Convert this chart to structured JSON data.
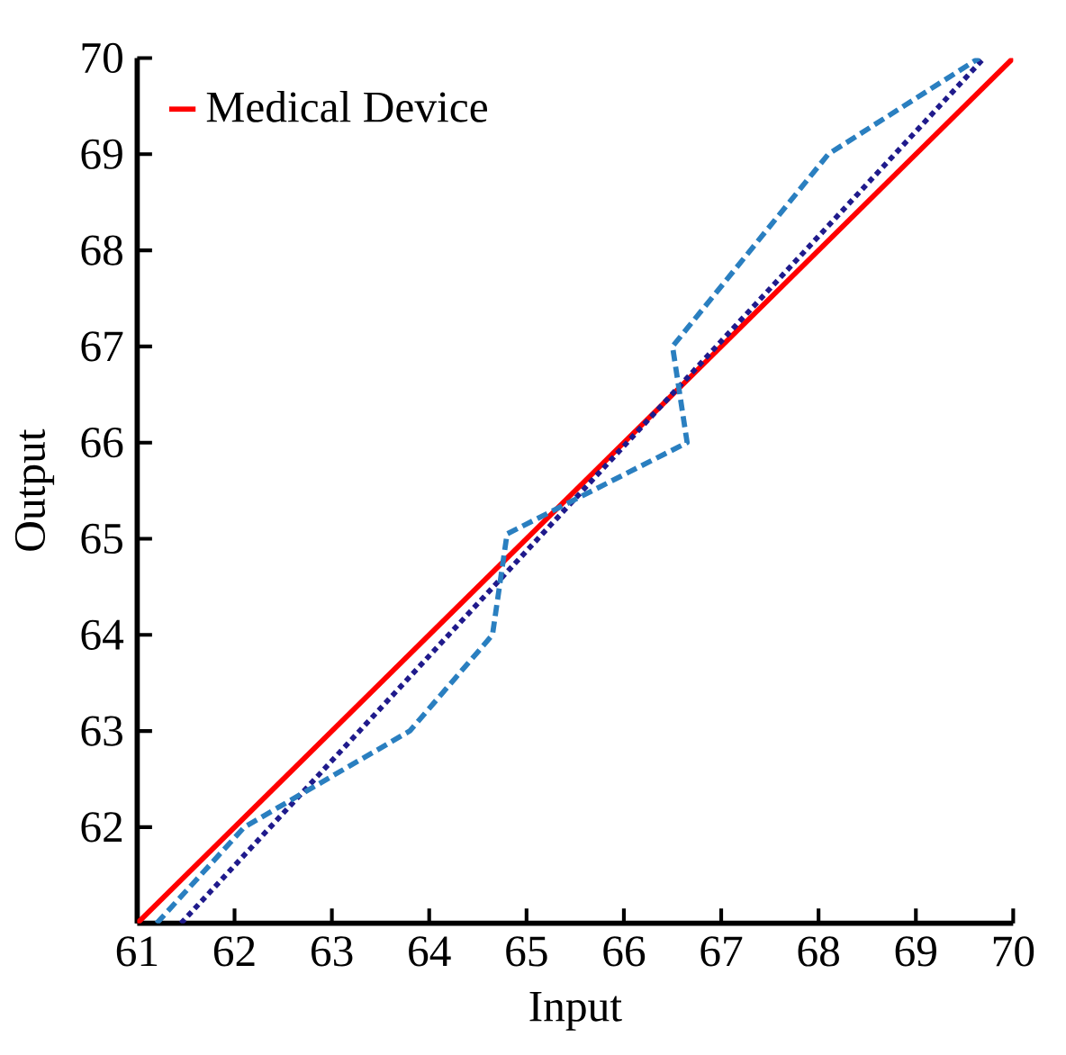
{
  "chart_data": {
    "type": "line",
    "xlabel": "Input",
    "ylabel": "Output",
    "xlim": [
      61,
      70
    ],
    "ylim": [
      61,
      70
    ],
    "xticks": [
      61,
      62,
      63,
      64,
      65,
      66,
      67,
      68,
      69,
      70
    ],
    "yticks": [
      62,
      63,
      64,
      65,
      66,
      67,
      68,
      69,
      70
    ],
    "legend": "top left",
    "grid": false,
    "marker": "none",
    "series": [
      {
        "name": "Medical Device",
        "color": "#ff0000",
        "line_style": "solid",
        "x": [
          61,
          70
        ],
        "values": [
          61,
          70
        ]
      },
      {
        "color": "#1f1a8c",
        "line_style": "dotted",
        "x": [
          61.45,
          69.7
        ],
        "values": [
          61,
          70
        ]
      },
      {
        "color": "#2a7fc0",
        "line_style": "dashed",
        "x": [
          61.2,
          62.1,
          63.8,
          64.65,
          64.8,
          66.65,
          66.5,
          68.1,
          69.65
        ],
        "values": [
          61,
          62,
          63,
          64,
          65.05,
          66,
          67,
          69,
          70
        ]
      }
    ]
  }
}
